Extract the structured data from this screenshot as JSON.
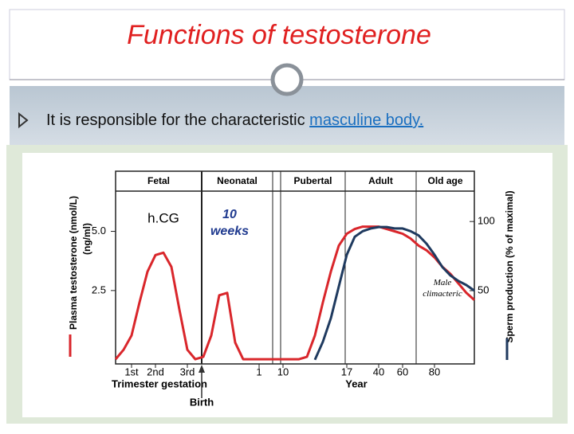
{
  "slide": {
    "title": "Functions of testosterone",
    "bullet": {
      "text": "It is responsible for the characteristic",
      "link": "masculine body."
    }
  },
  "chart_data": {
    "type": "line",
    "phases": [
      "Fetal",
      "Neonatal",
      "Pubertal",
      "Adult",
      "Old age"
    ],
    "annotations": [
      "h.CG",
      "10 weeks",
      "Male climacteric"
    ],
    "ylabel": [
      "Plasma testosterone (nmol/L)",
      "(ng/ml)"
    ],
    "y2label": "Sperm production (% of maximal)",
    "x_annotations": [
      "Trimester gestation",
      "Birth",
      "Year"
    ],
    "categories": [
      null,
      null,
      "1st",
      null,
      null,
      "2nd",
      null,
      null,
      null,
      "3rd",
      null,
      null,
      null,
      null,
      null,
      null,
      null,
      null,
      "1",
      null,
      null,
      "10",
      null,
      null,
      null,
      null,
      null,
      null,
      null,
      "17",
      null,
      null,
      null,
      "40",
      null,
      null,
      "60",
      null,
      null,
      null,
      "80",
      null,
      null,
      null,
      null,
      null
    ],
    "ylim": [
      -0.6,
      6.7
    ],
    "yticks": [
      2.5,
      {
        "value": 5,
        "label": "5.0"
      }
    ],
    "y2lim": [
      -3,
      122
    ],
    "y2ticks": [
      50,
      100
    ],
    "series": [
      {
        "color": "#d9262b",
        "values": [
          -0.4,
          0,
          0.6,
          2.0,
          3.3,
          4.0,
          4.1,
          3.5,
          1.7,
          0,
          -0.4,
          -0.3,
          0.6,
          2.3,
          2.4,
          0.3,
          -0.4,
          -0.4,
          -0.4,
          -0.4,
          -0.4,
          -0.4,
          -0.4,
          -0.4,
          -0.3,
          0.6,
          2.0,
          3.3,
          4.4,
          4.9,
          5.1,
          5.2,
          5.2,
          5.2,
          5.1,
          5.0,
          4.9,
          4.7,
          4.4,
          4.2,
          3.9,
          3.5,
          3.2,
          2.8,
          2.4,
          2.1
        ]
      },
      {
        "color": "#1f3a5f",
        "axis": "y2",
        "values": [
          null,
          null,
          null,
          null,
          null,
          null,
          null,
          null,
          null,
          null,
          null,
          null,
          null,
          null,
          null,
          null,
          null,
          null,
          null,
          null,
          null,
          null,
          null,
          null,
          null,
          0,
          13,
          30,
          53,
          76,
          89,
          93,
          95,
          96,
          96,
          95,
          95,
          93,
          90,
          84,
          76,
          67,
          61,
          57,
          54,
          50
        ]
      }
    ]
  }
}
